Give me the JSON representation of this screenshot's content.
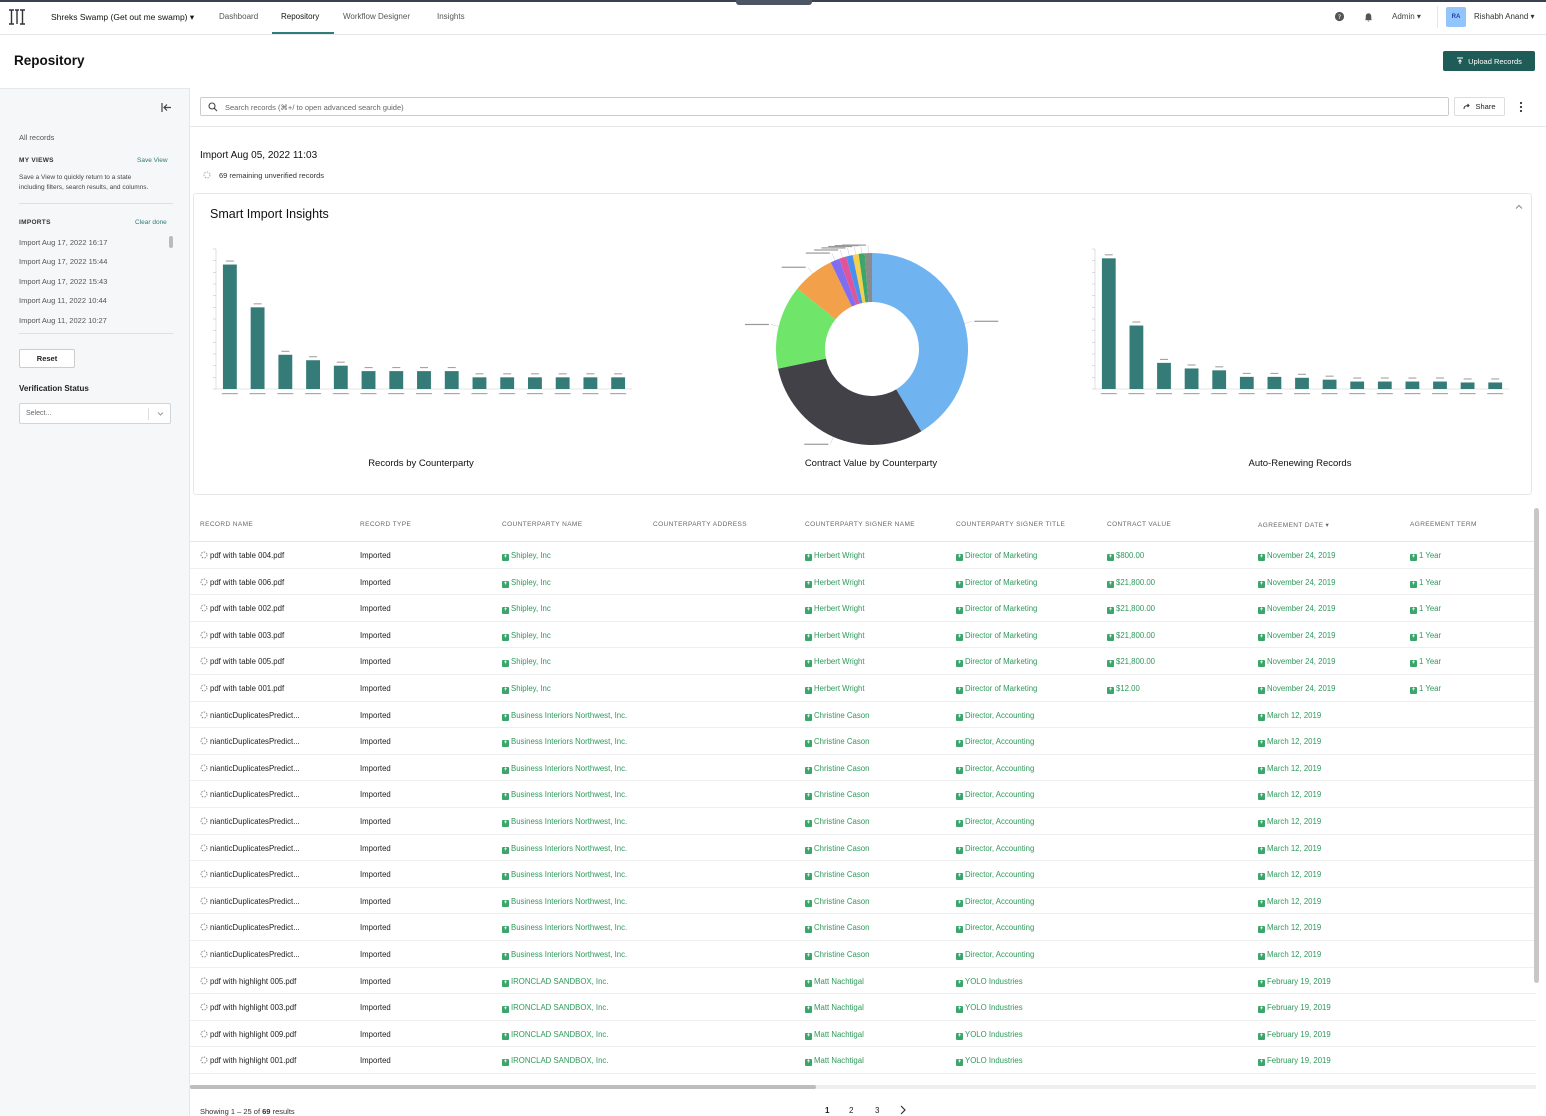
{
  "header": {
    "workspace": "Shreks Swamp (Get out me swamp)",
    "nav": [
      "Dashboard",
      "Repository",
      "Workflow Designer",
      "Insights"
    ],
    "admin": "Admin",
    "avatar_initials": "RA",
    "username": "Rishabh Anand"
  },
  "page": {
    "title": "Repository",
    "upload_label": "Upload Records"
  },
  "sidebar": {
    "all_records": "All records",
    "my_views": "MY VIEWS",
    "save_view": "Save View",
    "views_help_1": "Save a View to quickly return to a state",
    "views_help_2": "including filters, search results, and columns.",
    "imports_head": "IMPORTS",
    "clear_done": "Clear done",
    "imports": [
      "Import Aug 17, 2022 16:17",
      "Import Aug 17, 2022 15:44",
      "Import Aug 17, 2022 15:43",
      "Import Aug 11, 2022 10:44",
      "Import Aug 11, 2022 10:27"
    ],
    "reset": "Reset",
    "verification_label": "Verification Status",
    "select_placeholder": "Select..."
  },
  "search": {
    "placeholder": "Search records (⌘+/ to open advanced search guide)",
    "share": "Share"
  },
  "import": {
    "title": "Import Aug 05, 2022 11:03",
    "unverified": "69 remaining unverified records"
  },
  "insights": {
    "title": "Smart Import Insights"
  },
  "chart_data": [
    {
      "type": "bar",
      "title": "Records by Counterparty",
      "categories": [
        "c1",
        "c2",
        "c3",
        "c4",
        "c5",
        "c6",
        "c7",
        "c8",
        "c9",
        "c10",
        "c11",
        "c12",
        "c13",
        "c14",
        "c15"
      ],
      "values": [
        16,
        10.5,
        4.4,
        3.7,
        3,
        2.3,
        2.3,
        2.3,
        2.3,
        1.5,
        1.5,
        1.5,
        1.5,
        1.5,
        1.5
      ],
      "ylim": [
        0,
        18
      ],
      "color": "#357c78"
    },
    {
      "type": "pie",
      "title": "Contract Value by Counterparty",
      "slices": [
        {
          "value": 41,
          "color": "#6fb3f0"
        },
        {
          "value": 30,
          "color": "#414147"
        },
        {
          "value": 14,
          "color": "#6fe66a"
        },
        {
          "value": 7,
          "color": "#f2a04a"
        },
        {
          "value": 1.5,
          "color": "#7f6ef0"
        },
        {
          "value": 1.2,
          "color": "#e0559a"
        },
        {
          "value": 1.1,
          "color": "#4a8ff0"
        },
        {
          "value": 1,
          "color": "#f5d04a"
        },
        {
          "value": 1,
          "color": "#3ba56b"
        },
        {
          "value": 1.2,
          "color": "#8a8a8a"
        }
      ]
    },
    {
      "type": "bar",
      "title": "Auto-Renewing Records",
      "categories": [
        "a1",
        "a2",
        "a3",
        "a4",
        "a5",
        "a6",
        "a7",
        "a8",
        "a9",
        "a10",
        "a11",
        "a12",
        "a13",
        "a14",
        "a15"
      ],
      "values": [
        14,
        6.8,
        2.8,
        2.2,
        2.0,
        1.3,
        1.3,
        1.2,
        1.0,
        0.8,
        0.8,
        0.8,
        0.8,
        0.7,
        0.7
      ],
      "ylim": [
        0,
        15
      ],
      "color": "#357c78"
    }
  ],
  "table": {
    "columns": [
      "RECORD NAME",
      "RECORD TYPE",
      "COUNTERPARTY NAME",
      "COUNTERPARTY ADDRESS",
      "COUNTERPARTY SIGNER NAME",
      "COUNTERPARTY SIGNER TITLE",
      "CONTRACT VALUE",
      "AGREEMENT DATE",
      "AGREEMENT TERM"
    ],
    "rows": [
      [
        "pdf with table 004.pdf",
        "Imported",
        "Shipley, Inc",
        "",
        "Herbert Wright",
        "Director of Marketing",
        "$800.00",
        "November 24, 2019",
        "1 Year"
      ],
      [
        "pdf with table 006.pdf",
        "Imported",
        "Shipley, Inc",
        "",
        "Herbert Wright",
        "Director of Marketing",
        "$21,800.00",
        "November 24, 2019",
        "1 Year"
      ],
      [
        "pdf with table 002.pdf",
        "Imported",
        "Shipley, Inc",
        "",
        "Herbert Wright",
        "Director of Marketing",
        "$21,800.00",
        "November 24, 2019",
        "1 Year"
      ],
      [
        "pdf with table 003.pdf",
        "Imported",
        "Shipley, Inc",
        "",
        "Herbert Wright",
        "Director of Marketing",
        "$21,800.00",
        "November 24, 2019",
        "1 Year"
      ],
      [
        "pdf with table 005.pdf",
        "Imported",
        "Shipley, Inc",
        "",
        "Herbert Wright",
        "Director of Marketing",
        "$21,800.00",
        "November 24, 2019",
        "1 Year"
      ],
      [
        "pdf with table 001.pdf",
        "Imported",
        "Shipley, Inc",
        "",
        "Herbert Wright",
        "Director of Marketing",
        "$12.00",
        "November 24, 2019",
        "1 Year"
      ],
      [
        "nianticDuplicatesPredict...",
        "Imported",
        "Business Interiors Northwest, Inc.",
        "",
        "Christine Cason",
        "Director, Accounting",
        "",
        "March 12, 2019",
        ""
      ],
      [
        "nianticDuplicatesPredict...",
        "Imported",
        "Business Interiors Northwest, Inc.",
        "",
        "Christine Cason",
        "Director, Accounting",
        "",
        "March 12, 2019",
        ""
      ],
      [
        "nianticDuplicatesPredict...",
        "Imported",
        "Business Interiors Northwest, Inc.",
        "",
        "Christine Cason",
        "Director, Accounting",
        "",
        "March 12, 2019",
        ""
      ],
      [
        "nianticDuplicatesPredict...",
        "Imported",
        "Business Interiors Northwest, Inc.",
        "",
        "Christine Cason",
        "Director, Accounting",
        "",
        "March 12, 2019",
        ""
      ],
      [
        "nianticDuplicatesPredict...",
        "Imported",
        "Business Interiors Northwest, Inc.",
        "",
        "Christine Cason",
        "Director, Accounting",
        "",
        "March 12, 2019",
        ""
      ],
      [
        "nianticDuplicatesPredict...",
        "Imported",
        "Business Interiors Northwest, Inc.",
        "",
        "Christine Cason",
        "Director, Accounting",
        "",
        "March 12, 2019",
        ""
      ],
      [
        "nianticDuplicatesPredict...",
        "Imported",
        "Business Interiors Northwest, Inc.",
        "",
        "Christine Cason",
        "Director, Accounting",
        "",
        "March 12, 2019",
        ""
      ],
      [
        "nianticDuplicatesPredict...",
        "Imported",
        "Business Interiors Northwest, Inc.",
        "",
        "Christine Cason",
        "Director, Accounting",
        "",
        "March 12, 2019",
        ""
      ],
      [
        "nianticDuplicatesPredict...",
        "Imported",
        "Business Interiors Northwest, Inc.",
        "",
        "Christine Cason",
        "Director, Accounting",
        "",
        "March 12, 2019",
        ""
      ],
      [
        "nianticDuplicatesPredict...",
        "Imported",
        "Business Interiors Northwest, Inc.",
        "",
        "Christine Cason",
        "Director, Accounting",
        "",
        "March 12, 2019",
        ""
      ],
      [
        "pdf with highlight 005.pdf",
        "Imported",
        "IRONCLAD SANDBOX, Inc.",
        "",
        "Matt Nachtigal",
        "YOLO Industries",
        "",
        "February 19, 2019",
        ""
      ],
      [
        "pdf with highlight 003.pdf",
        "Imported",
        "IRONCLAD SANDBOX, Inc.",
        "",
        "Matt Nachtigal",
        "YOLO Industries",
        "",
        "February 19, 2019",
        ""
      ],
      [
        "pdf with highlight 009.pdf",
        "Imported",
        "IRONCLAD SANDBOX, Inc.",
        "",
        "Matt Nachtigal",
        "YOLO Industries",
        "",
        "February 19, 2019",
        ""
      ],
      [
        "pdf with highlight 001.pdf",
        "Imported",
        "IRONCLAD SANDBOX, Inc.",
        "",
        "Matt Nachtigal",
        "YOLO Industries",
        "",
        "February 19, 2019",
        ""
      ]
    ]
  },
  "pagination": {
    "showing_prefix": "Showing 1 – 25 of ",
    "total": "69",
    "showing_suffix": " results",
    "pages": [
      "1",
      "2",
      "3"
    ]
  }
}
